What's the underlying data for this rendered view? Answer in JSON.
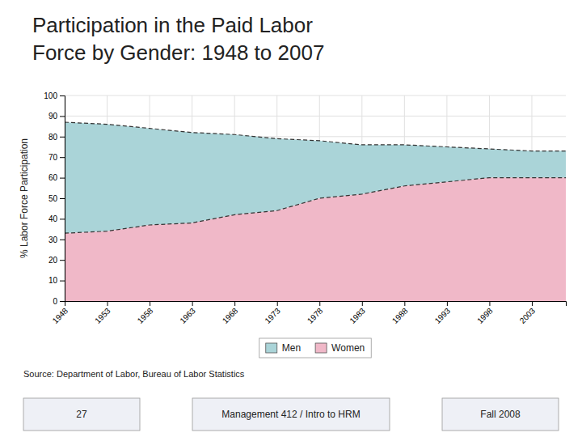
{
  "chart_data": {
    "type": "area",
    "title": [
      "Participation in the Paid Labor",
      "Force by Gender: 1948 to 2007"
    ],
    "y_label": "% Labor Force Participation",
    "annotations": [
      "Source: Department of Labor, Bureau of Labor Statistics",
      "27",
      "Management 412 / Intro to HRM",
      "Fall 2008"
    ],
    "x": [
      1948,
      1953,
      1958,
      1963,
      1968,
      1973,
      1978,
      1983,
      1988,
      1993,
      1998,
      2003,
      2007
    ],
    "series": [
      {
        "name": "Men",
        "color": "#aad4d8",
        "line_style": "dashed",
        "values": [
          87,
          86,
          84,
          82,
          81,
          79,
          78,
          76,
          76,
          75,
          74,
          73,
          73
        ]
      },
      {
        "name": "Women",
        "color": "#f0b8c8",
        "line_style": "dashed",
        "values": [
          33,
          34,
          37,
          38,
          42,
          44,
          50,
          52,
          56,
          58,
          60,
          60,
          60
        ]
      }
    ],
    "xlim": [
      1948,
      2007
    ],
    "xticks": [
      1948,
      1953,
      1958,
      1963,
      1968,
      1973,
      1978,
      1983,
      1988,
      1993,
      1998,
      2003
    ],
    "ylim": [
      0,
      100
    ],
    "yticks": [
      0,
      10,
      20,
      30,
      40,
      50,
      60,
      70,
      80,
      90,
      100
    ],
    "grid": true,
    "legend": "bottom"
  }
}
